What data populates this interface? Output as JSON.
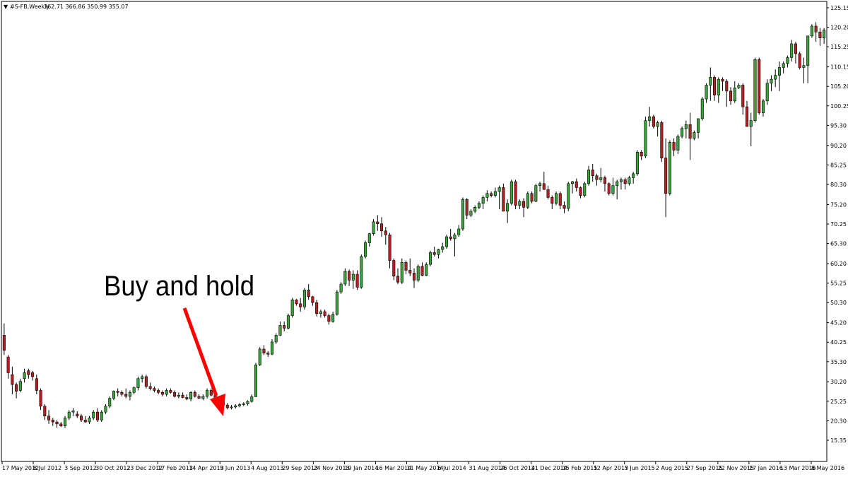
{
  "header": {
    "symbol": "#S-FB,Weekly",
    "ohlc": "362.71 366.86 350.99 355.07"
  },
  "annotation": {
    "text": "Buy and hold",
    "arrow_color": "#ff0000"
  },
  "colors": {
    "bull": "#3aa53a",
    "bear": "#b22222",
    "wick": "#000000",
    "axis": "#000000",
    "background": "#ffffff"
  },
  "chart_data": {
    "type": "candlestick",
    "ylim": [
      15.35,
      125.15
    ],
    "ytick_labels": [
      "125.15",
      "120.20",
      "115.25",
      "110.15",
      "105.20",
      "100.25",
      "95.30",
      "90.20",
      "85.25",
      "80.30",
      "75.20",
      "70.25",
      "65.30",
      "60.20",
      "55.25",
      "50.30",
      "45.20",
      "40.25",
      "35.30",
      "30.20",
      "25.25",
      "20.30",
      "15.35"
    ],
    "xtick_labels": [
      "17 May 2012",
      "8 Jul 2012",
      "3 Sep 2012",
      "30 Oct 2012",
      "23 Dec 2012",
      "17 Feb 2013",
      "14 Apr 2013",
      "9 Jun 2013",
      "4 Aug 2013",
      "29 Sep 2013",
      "24 Nov 2013",
      "19 Jan 2014",
      "16 Mar 2014",
      "11 May 2014",
      "6 Jul 2014",
      "31 Aug 2014",
      "26 Oct 2014",
      "21 Dec 2014",
      "15 Feb 2015",
      "12 Apr 2015",
      "7 Jun 2015",
      "2 Aug 2015",
      "27 Sep 2015",
      "22 Nov 2015",
      "17 Jan 2016",
      "13 Mar 2016",
      "8 May 2016"
    ],
    "grid": false,
    "candles_ohlc": [
      [
        42,
        45,
        37,
        38.2
      ],
      [
        36.5,
        37,
        31,
        32.5
      ],
      [
        32,
        34,
        27,
        29.5
      ],
      [
        29.5,
        30,
        26,
        27.8
      ],
      [
        28,
        31,
        27.5,
        30.3
      ],
      [
        31,
        33.5,
        30,
        32.5
      ],
      [
        33,
        33.5,
        31,
        32
      ],
      [
        32.5,
        33,
        30.5,
        31.5
      ],
      [
        31,
        32,
        27,
        28
      ],
      [
        28,
        28.5,
        23,
        24
      ],
      [
        24,
        24.5,
        20.5,
        21.5
      ],
      [
        21.5,
        23,
        19.5,
        20.5
      ],
      [
        20.5,
        21,
        19,
        20
      ],
      [
        20,
        20.5,
        18.5,
        19.5
      ],
      [
        19.5,
        20,
        18.7,
        19
      ],
      [
        19,
        21.5,
        18.5,
        21
      ],
      [
        21,
        23,
        20.5,
        22.5
      ],
      [
        22.5,
        23.5,
        21.5,
        22.8
      ],
      [
        22,
        22.7,
        21,
        21.5
      ],
      [
        21.5,
        22,
        20,
        20.5
      ],
      [
        20.5,
        21.5,
        19.8,
        20
      ],
      [
        20,
        21.5,
        19.5,
        21
      ],
      [
        21,
        23,
        20.5,
        22.5
      ],
      [
        22.5,
        23.5,
        20,
        20.5
      ],
      [
        20.5,
        23,
        20,
        22.5
      ],
      [
        22.5,
        24.5,
        22,
        24
      ],
      [
        24,
        26.5,
        23.5,
        26
      ],
      [
        26,
        28,
        25.5,
        27.8
      ],
      [
        27.8,
        28.5,
        26.5,
        27.5
      ],
      [
        27.5,
        28,
        26.5,
        27
      ],
      [
        27,
        28.5,
        26,
        26.5
      ],
      [
        26.5,
        28,
        25.5,
        27.5
      ],
      [
        27.5,
        29,
        27,
        28.7
      ],
      [
        28.7,
        31.5,
        28,
        31
      ],
      [
        31,
        32,
        30,
        31.5
      ],
      [
        31.5,
        32,
        28.5,
        29
      ],
      [
        29,
        30,
        28,
        28.5
      ],
      [
        28.5,
        29,
        27.5,
        28
      ],
      [
        28,
        28.5,
        27,
        27.5
      ],
      [
        27.5,
        28,
        26.5,
        27
      ],
      [
        27,
        28.5,
        26.5,
        28
      ],
      [
        28,
        28.5,
        27.2,
        27.5
      ],
      [
        27.5,
        28,
        26.2,
        26.5
      ],
      [
        26.5,
        27.5,
        26,
        26.8
      ],
      [
        26.8,
        27.5,
        26,
        26.2
      ],
      [
        26.2,
        27,
        25.5,
        25.8
      ],
      [
        25.8,
        27.8,
        25.2,
        27.5
      ],
      [
        27.5,
        28,
        26.2,
        26.5
      ],
      [
        26.5,
        27,
        25.8,
        26
      ],
      [
        26,
        27,
        25.5,
        26.5
      ],
      [
        26.5,
        28.5,
        26,
        28
      ],
      [
        28,
        28.5,
        26.5,
        26.8
      ],
      [
        26.8,
        27,
        25.8,
        26
      ],
      [
        26,
        26.5,
        25,
        25.3
      ],
      [
        25.3,
        25.8,
        24,
        24.3
      ],
      [
        24.3,
        24.8,
        23.2,
        23.6
      ],
      [
        23.6,
        24.3,
        23.2,
        23.8
      ],
      [
        23.8,
        24.5,
        23.4,
        24.1
      ],
      [
        24.1,
        24.8,
        23.7,
        24.4
      ],
      [
        24.4,
        25,
        24,
        24.6
      ],
      [
        24.6,
        25.5,
        24.2,
        25.2
      ],
      [
        25.2,
        27,
        24.9,
        26.4
      ],
      [
        26.4,
        35,
        26.4,
        34.5
      ],
      [
        34.5,
        39,
        34.2,
        38.5
      ],
      [
        38.5,
        39.5,
        37,
        37.5
      ],
      [
        37.5,
        38,
        36.5,
        37.2
      ],
      [
        37.2,
        41,
        37,
        40.3
      ],
      [
        40.3,
        42.5,
        39.8,
        42
      ],
      [
        42,
        45.5,
        41.8,
        44.5
      ],
      [
        44.5,
        45.5,
        43,
        43.8
      ],
      [
        43.8,
        47.5,
        43.5,
        47
      ],
      [
        47,
        51.5,
        46.5,
        51
      ],
      [
        51,
        51.2,
        49.5,
        50
      ],
      [
        50,
        51.5,
        48,
        49.2
      ],
      [
        49.2,
        54,
        48.5,
        53.5
      ],
      [
        53.5,
        55,
        51,
        51.8
      ],
      [
        51.8,
        52,
        49.5,
        50.3
      ],
      [
        50.3,
        51,
        46.8,
        47.5
      ],
      [
        47.5,
        48.5,
        46.5,
        48
      ],
      [
        48,
        48.5,
        46.5,
        47
      ],
      [
        47,
        47.5,
        44.7,
        45.5
      ],
      [
        45.5,
        48,
        45.2,
        47.3
      ],
      [
        47.3,
        53.5,
        47,
        53
      ],
      [
        53,
        55.5,
        52.5,
        55
      ],
      [
        55,
        59,
        54.5,
        58.2
      ],
      [
        58.2,
        58.7,
        54.5,
        56
      ],
      [
        56,
        58.5,
        53.8,
        57.5
      ],
      [
        57.5,
        58.5,
        53.5,
        54.2
      ],
      [
        54.2,
        62.5,
        53.8,
        62
      ],
      [
        62,
        66,
        61.5,
        65.5
      ],
      [
        65.5,
        68,
        64.5,
        67.8
      ],
      [
        67.8,
        71.5,
        67.3,
        70.8
      ],
      [
        70.8,
        72.5,
        68.5,
        70.3
      ],
      [
        70.3,
        72,
        67,
        68.5
      ],
      [
        68.5,
        69.5,
        65,
        67.5
      ],
      [
        67.5,
        68,
        59,
        61
      ],
      [
        61,
        61.5,
        56,
        57
      ],
      [
        57,
        59,
        55,
        55.5
      ],
      [
        55.5,
        61.5,
        55,
        60.5
      ],
      [
        60.5,
        61,
        57.5,
        58.5
      ],
      [
        58.5,
        61.5,
        57,
        57.8
      ],
      [
        57.8,
        59,
        54,
        56
      ],
      [
        56,
        60,
        55.5,
        59.5
      ],
      [
        59.5,
        60.5,
        57,
        57.2
      ],
      [
        57.2,
        60.5,
        57,
        60
      ],
      [
        60,
        63.5,
        59.5,
        63
      ],
      [
        63,
        64.5,
        62,
        62.5
      ],
      [
        62.5,
        64,
        61.5,
        63.8
      ],
      [
        63.8,
        65.5,
        63,
        64.5
      ],
      [
        64.5,
        67.5,
        64,
        67
      ],
      [
        67,
        69,
        66,
        66.5
      ],
      [
        66.5,
        68,
        62,
        67.5
      ],
      [
        67.5,
        70,
        67,
        69
      ],
      [
        69,
        77,
        68.5,
        76.5
      ],
      [
        76.5,
        76.8,
        71.5,
        72.5
      ],
      [
        72.5,
        74,
        72,
        73.5
      ],
      [
        73.5,
        75,
        73,
        74.5
      ],
      [
        74.5,
        76,
        74,
        75.5
      ],
      [
        75.5,
        77.5,
        74,
        77
      ],
      [
        77,
        78.8,
        76,
        78
      ],
      [
        78,
        78.5,
        77,
        77.5
      ],
      [
        77.5,
        79.5,
        77,
        78.5
      ],
      [
        78.5,
        80,
        74,
        79.5
      ],
      [
        79.5,
        80.5,
        74,
        73.5
      ],
      [
        73.5,
        76.5,
        70.5,
        75.5
      ],
      [
        75.5,
        81.5,
        75,
        81
      ],
      [
        81,
        81.5,
        74,
        75
      ],
      [
        75,
        76.5,
        74,
        76
      ],
      [
        76,
        76.8,
        72,
        74.5
      ],
      [
        74.5,
        78.5,
        74,
        78
      ],
      [
        78,
        78.5,
        75.5,
        76
      ],
      [
        76,
        80.5,
        75.8,
        80
      ],
      [
        80,
        81,
        78.5,
        80.5
      ],
      [
        80.5,
        83.5,
        79.5,
        79
      ],
      [
        79,
        80,
        76.5,
        77
      ],
      [
        77,
        77.5,
        74,
        75.5
      ],
      [
        75.5,
        78.5,
        75,
        78
      ],
      [
        78,
        78.5,
        74,
        75
      ],
      [
        75,
        76,
        73,
        74.2
      ],
      [
        74.2,
        81,
        73.5,
        80.5
      ],
      [
        80.5,
        81.2,
        78,
        81
      ],
      [
        81,
        81.8,
        78.5,
        79.5
      ],
      [
        79.5,
        79.8,
        76.8,
        77.5
      ],
      [
        77.5,
        81,
        77,
        80.5
      ],
      [
        80.5,
        85,
        80,
        84
      ],
      [
        84,
        85.5,
        81,
        82.5
      ],
      [
        82.5,
        83,
        80,
        81.5
      ],
      [
        81.5,
        84.5,
        80.8,
        82
      ],
      [
        82,
        82.5,
        78.5,
        80.5
      ],
      [
        80.5,
        80.8,
        77.5,
        78
      ],
      [
        78,
        82,
        77.5,
        80
      ],
      [
        80,
        81.5,
        76.5,
        81
      ],
      [
        81,
        82,
        79,
        81.5
      ],
      [
        81.5,
        82,
        79,
        80.5
      ],
      [
        80.5,
        82.5,
        80,
        82
      ],
      [
        82,
        83.5,
        80.5,
        83
      ],
      [
        83,
        89,
        82.5,
        88.5
      ],
      [
        88.5,
        89,
        86.5,
        87.5
      ],
      [
        87.5,
        97.5,
        87,
        96.5
      ],
      [
        96.5,
        100,
        95,
        97.5
      ],
      [
        97.5,
        98,
        94.5,
        95
      ],
      [
        95,
        96.5,
        92.5,
        96
      ],
      [
        96,
        96.5,
        86,
        87
      ],
      [
        87,
        92,
        72,
        78
      ],
      [
        78,
        91.5,
        77.5,
        91
      ],
      [
        91,
        92,
        87.5,
        89
      ],
      [
        89,
        93,
        88,
        92.5
      ],
      [
        92.5,
        95,
        92,
        94.5
      ],
      [
        94.5,
        96.5,
        92,
        95.5
      ],
      [
        95.5,
        98.5,
        86.5,
        92
      ],
      [
        92,
        94,
        91.5,
        93.5
      ],
      [
        93.5,
        97,
        92,
        97
      ],
      [
        97,
        102.5,
        96.5,
        102
      ],
      [
        102,
        106,
        101,
        105.5
      ],
      [
        105.5,
        110,
        101.5,
        107.5
      ],
      [
        107.5,
        108,
        101.5,
        103
      ],
      [
        103,
        107.5,
        101,
        107
      ],
      [
        107,
        107.5,
        104,
        106.5
      ],
      [
        106.5,
        107,
        100,
        104
      ],
      [
        104,
        105,
        100.5,
        101.5
      ],
      [
        101.5,
        106.5,
        101,
        104.8
      ],
      [
        104.8,
        106,
        104.5,
        105.5
      ],
      [
        105.5,
        106,
        98,
        100
      ],
      [
        100,
        101.5,
        96,
        95
      ],
      [
        95,
        98.5,
        90,
        96.5
      ],
      [
        96.5,
        112.5,
        96,
        112
      ],
      [
        112,
        112.5,
        98,
        98.5
      ],
      [
        98.5,
        102,
        97.5,
        101.5
      ],
      [
        101.5,
        107,
        100.5,
        106
      ],
      [
        106,
        108,
        104,
        107
      ],
      [
        107,
        109.5,
        105,
        108
      ],
      [
        108,
        111.5,
        104,
        110
      ],
      [
        110,
        111.5,
        108.5,
        111
      ],
      [
        111,
        113,
        110,
        112.5
      ],
      [
        112.5,
        117,
        111.5,
        116
      ],
      [
        116,
        116.5,
        111,
        113.5
      ],
      [
        113.5,
        114,
        109.5,
        110
      ],
      [
        110,
        112.5,
        106,
        110.5
      ],
      [
        110.5,
        118,
        106,
        118
      ],
      [
        118,
        121,
        117.5,
        120.5
      ],
      [
        120.5,
        121.5,
        116.5,
        119
      ],
      [
        119,
        120,
        115.5,
        117.5
      ],
      [
        117.5,
        120,
        116,
        119.5
      ]
    ]
  }
}
